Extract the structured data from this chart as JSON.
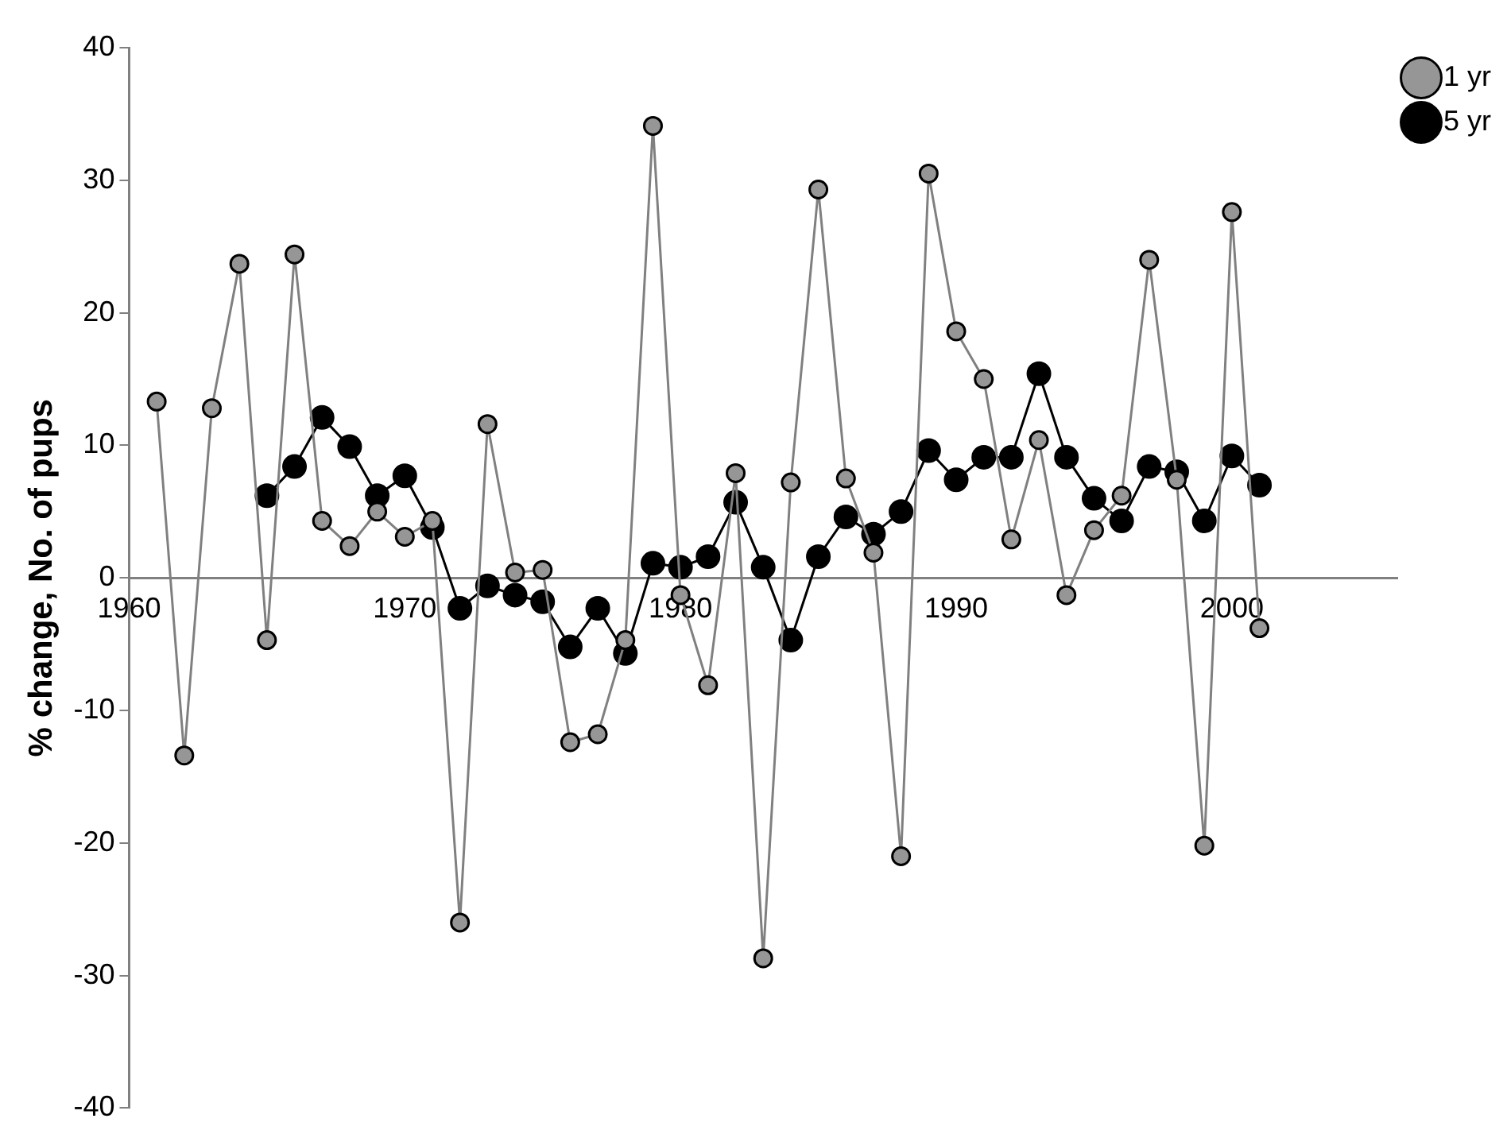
{
  "chart_data": {
    "type": "line",
    "ylabel": "% change, No. of pups",
    "xlim": [
      1960,
      2006
    ],
    "xticks": [
      1960,
      1970,
      1980,
      1990,
      2000
    ],
    "ylim": [
      -40,
      40
    ],
    "yticks": [
      -40,
      -30,
      -20,
      -10,
      0,
      10,
      20,
      30,
      40
    ],
    "grid": false,
    "legend": "top right",
    "marker": "circle",
    "line_style": "solid",
    "series": [
      {
        "name": "1 yr",
        "color": "#969696",
        "x": [
          1961,
          1962,
          1963,
          1964,
          1965,
          1966,
          1967,
          1968,
          1969,
          1970,
          1971,
          1972,
          1973,
          1974,
          1975,
          1976,
          1977,
          1978,
          1979,
          1980,
          1981,
          1982,
          1983,
          1984,
          1985,
          1986,
          1987,
          1988,
          1989,
          1990,
          1991,
          1992,
          1993,
          1994,
          1995,
          1996,
          1997,
          1998,
          1999,
          2000,
          2001
        ],
        "values": [
          13.3,
          -13.4,
          12.8,
          23.7,
          -4.7,
          24.4,
          4.3,
          2.4,
          5.0,
          3.1,
          4.3,
          -26.0,
          11.6,
          0.4,
          0.6,
          -12.4,
          -11.8,
          -4.7,
          34.1,
          -1.3,
          -8.1,
          7.9,
          -28.7,
          7.2,
          29.3,
          7.5,
          1.9,
          -21.0,
          30.5,
          18.6,
          15.0,
          2.9,
          10.4,
          -1.3,
          3.6,
          6.2,
          24.0,
          7.4,
          -20.2,
          27.6,
          -3.8
        ]
      },
      {
        "name": "5 yr",
        "color": "#000000",
        "x": [
          1965,
          1966,
          1967,
          1968,
          1969,
          1970,
          1971,
          1972,
          1973,
          1974,
          1975,
          1976,
          1977,
          1978,
          1979,
          1980,
          1981,
          1982,
          1983,
          1984,
          1985,
          1986,
          1987,
          1988,
          1989,
          1990,
          1991,
          1992,
          1993,
          1994,
          1995,
          1996,
          1997,
          1998,
          1999,
          2000,
          2001
        ],
        "values": [
          6.2,
          8.4,
          12.1,
          9.9,
          6.2,
          7.7,
          3.8,
          -2.3,
          -0.6,
          -1.3,
          -1.8,
          -5.2,
          -2.3,
          -5.7,
          1.1,
          0.8,
          1.6,
          5.7,
          0.8,
          -4.7,
          1.6,
          4.6,
          3.3,
          5.0,
          9.6,
          7.4,
          9.1,
          9.1,
          15.4,
          9.1,
          6.0,
          4.3,
          8.4,
          8.0,
          4.3,
          9.2,
          7.0
        ]
      }
    ]
  }
}
